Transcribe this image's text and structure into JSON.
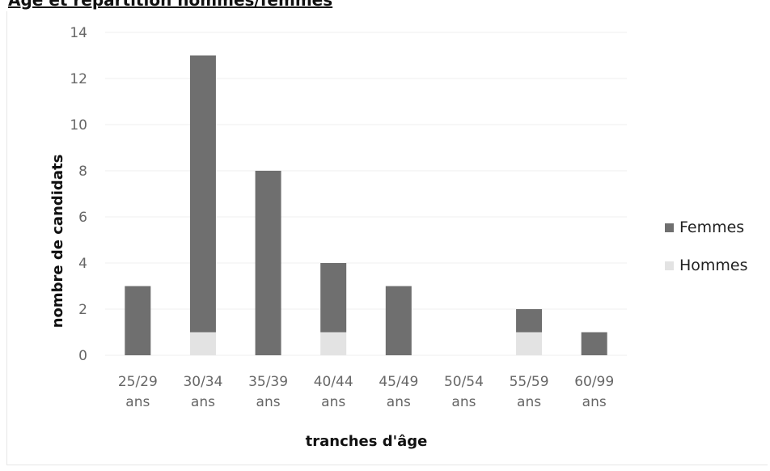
{
  "chart_data": {
    "type": "bar",
    "stacked": true,
    "title": "Âge et répartition hommes/femmes",
    "xlabel": "tranches d'âge",
    "ylabel": "nombre de candidats",
    "ylim": [
      0,
      14
    ],
    "yticks": [
      0,
      2,
      4,
      6,
      8,
      10,
      12,
      14
    ],
    "categories": [
      [
        "25/29",
        "ans"
      ],
      [
        "30/34",
        "ans"
      ],
      [
        "35/39",
        "ans"
      ],
      [
        "40/44",
        "ans"
      ],
      [
        "45/49",
        "ans"
      ],
      [
        "50/54",
        "ans"
      ],
      [
        "55/59",
        "ans"
      ],
      [
        "60/99",
        "ans"
      ]
    ],
    "series": [
      {
        "name": "Hommes",
        "color": "#e3e3e3",
        "values": [
          0,
          1,
          0,
          1,
          0,
          0,
          1,
          0
        ]
      },
      {
        "name": "Femmes",
        "color": "#6f6f6f",
        "values": [
          3,
          12,
          8,
          3,
          3,
          0,
          1,
          1
        ]
      }
    ],
    "legend": {
      "position": "right",
      "order": [
        "Femmes",
        "Hommes"
      ]
    },
    "grid": true
  }
}
